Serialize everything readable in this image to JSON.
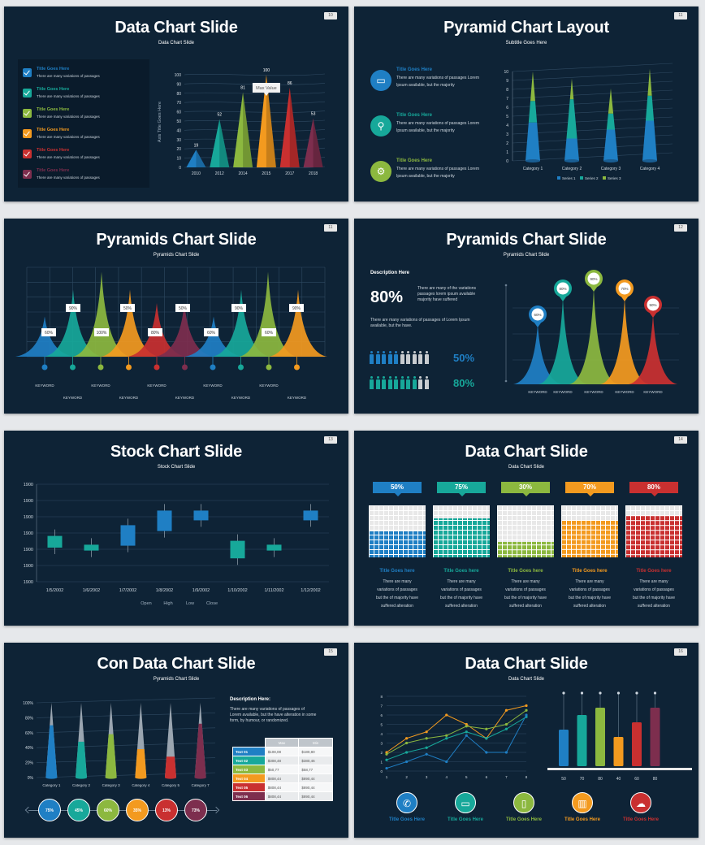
{
  "slides": {
    "s1": {
      "num": "10",
      "title": "Data Chart Slide",
      "subtitle": "Data Chart Slide",
      "legend": [
        {
          "title": "Title Goes Here",
          "text": "There are many variations of passages",
          "color": "#1f7fc4"
        },
        {
          "title": "Title Goes Here",
          "text": "There are many variations of passages",
          "color": "#17a89a"
        },
        {
          "title": "Title Goes Here",
          "text": "There are many variations of passages",
          "color": "#8cb83f"
        },
        {
          "title": "Title Goes Here",
          "text": "There are many variations of passages",
          "color": "#f39a1f"
        },
        {
          "title": "Title Goes Here",
          "text": "There are many variations of passages",
          "color": "#c93030"
        },
        {
          "title": "Title Goes Here",
          "text": "There are many variations of passages",
          "color": "#7d2e4e"
        }
      ],
      "tooltip": "Max Value",
      "ylabel": "Axis Title Goes Here"
    },
    "s2": {
      "num": "11",
      "title": "Pyramid Chart Layout",
      "subtitle": "Subtitle Goes Here",
      "items": [
        {
          "title": "Title Goes Here",
          "text1": "There are many variations of passages Lorem",
          "text2": "Ipsum available, but the majority",
          "color": "#1f7fc4",
          "icon": "monitor-icon"
        },
        {
          "title": "Title Goes Here",
          "text1": "There are many variations of passages Lorem",
          "text2": "Ipsum available, but the majority",
          "color": "#17a89a",
          "icon": "search-icon"
        },
        {
          "title": "Title Goes Here",
          "text1": "There are many variations of passages Lorem",
          "text2": "Ipsum available, but the majority",
          "color": "#8cb83f",
          "icon": "gears-icon"
        }
      ]
    },
    "s3": {
      "num": "11",
      "title": "Pyramids Chart Slide",
      "subtitle": "Pyramids Chart Slide"
    },
    "s4": {
      "num": "12",
      "title": "Pyramids Chart Slide",
      "subtitle": "Pyramids Chart Slide",
      "desc_title": "Description Here",
      "big_pct": "80%",
      "desc_text1": "There are many of the variations",
      "desc_text2": "passages lorem ipsum available",
      "desc_text3": "majority have suffered",
      "desc_text4": "There are many variations of passages of Lorem Ipsum",
      "desc_text5": "available, but the have.",
      "row1_pct": "50%",
      "row2_pct": "80%"
    },
    "s5": {
      "num": "13",
      "title": "Stock Chart Slide",
      "subtitle": "Stock Chart Slide"
    },
    "s6": {
      "num": "14",
      "title": "Data Chart Slide",
      "subtitle": "Data Chart Slide",
      "cols": [
        {
          "pct": "50%",
          "title": "Title Goes here",
          "color": "#1f7fc4",
          "fill": 0.5
        },
        {
          "pct": "75%",
          "title": "Title Goes here",
          "color": "#17a89a",
          "fill": 0.75
        },
        {
          "pct": "30%",
          "title": "Title Goes here",
          "color": "#8cb83f",
          "fill": 0.3
        },
        {
          "pct": "70%",
          "title": "Title Goes here",
          "color": "#f39a1f",
          "fill": 0.7
        },
        {
          "pct": "80%",
          "title": "Title Goes here",
          "color": "#c93030",
          "fill": 0.8
        }
      ],
      "col_text": [
        "There are many",
        "variations of passages",
        "but the of majority have",
        "suffered alteration"
      ]
    },
    "s7": {
      "num": "15",
      "title": "Con Data Chart Slide",
      "subtitle": "Pyramids Chart Slide",
      "desc_title": "Description Here:",
      "desc_lines": [
        "There are many variations of passages of",
        "Lorem available, but the have alteration in some",
        "form, by humour, or randomized."
      ],
      "table_head": [
        "Max",
        "Min"
      ],
      "table_rows": [
        {
          "label": "Text 01",
          "a": "$108,08",
          "b": "$180,80",
          "color": "#1f7fc4"
        },
        {
          "label": "Text 02",
          "a": "$308,48",
          "b": "$380,46",
          "color": "#17a89a"
        },
        {
          "label": "Text 03",
          "a": "$50,77",
          "b": "$58,77",
          "color": "#8cb83f"
        },
        {
          "label": "Text 04",
          "a": "$808,44",
          "b": "$890,44",
          "color": "#f39a1f"
        },
        {
          "label": "Text 05",
          "a": "$808,44",
          "b": "$890,44",
          "color": "#c93030"
        },
        {
          "label": "Text 06",
          "a": "$808,44",
          "b": "$890,44",
          "color": "#7d2e4e"
        }
      ],
      "circles": [
        {
          "label": "75%",
          "color": "#1f7fc4"
        },
        {
          "label": "45%",
          "color": "#17a89a"
        },
        {
          "label": "60%",
          "color": "#8cb83f"
        },
        {
          "label": "35%",
          "color": "#f39a1f"
        },
        {
          "label": "13%",
          "color": "#c93030"
        },
        {
          "label": "73%",
          "color": "#7d2e4e"
        }
      ]
    },
    "s8": {
      "num": "16",
      "title": "Data Chart Slide",
      "subtitle": "Data Chart Slide",
      "icons": [
        {
          "title": "Title Goes Here",
          "color": "#1f7fc4",
          "icon": "satellite-icon",
          "glyph": "✆"
        },
        {
          "title": "Title Goes Here",
          "color": "#17a89a",
          "icon": "monitor-icon",
          "glyph": "▭"
        },
        {
          "title": "Title Goes Here",
          "color": "#8cb83f",
          "icon": "phone-icon",
          "glyph": "▯"
        },
        {
          "title": "Title Goes Here",
          "color": "#f39a1f",
          "icon": "bar-chart-icon",
          "glyph": "▥"
        },
        {
          "title": "Title Goes Here",
          "color": "#c93030",
          "icon": "chat-icon",
          "glyph": "☁"
        }
      ]
    }
  },
  "chart_data": [
    {
      "type": "bar",
      "categories": [
        "2010",
        "2012",
        "2014",
        "2015",
        "2017",
        "2018"
      ],
      "values": [
        19,
        52,
        81,
        100,
        86,
        53
      ],
      "yticks": [
        "0",
        "10",
        "20",
        "30",
        "40",
        "50",
        "60",
        "70",
        "80",
        "90",
        "100"
      ],
      "ylim": [
        0,
        100
      ],
      "ylabel": "Axis Title Goes Here",
      "annotations": [
        "Max Value"
      ]
    },
    {
      "type": "bar",
      "categories": [
        "Category 1",
        "Category 2",
        "Category 3",
        "Category 4"
      ],
      "series": [
        {
          "name": "Series 1",
          "values": [
            4.3,
            2.5,
            3.5,
            4.5
          ]
        },
        {
          "name": "Series 2",
          "values": [
            2.4,
            4.4,
            1.8,
            2.8
          ]
        },
        {
          "name": "Series 3",
          "values": [
            3.3,
            2.3,
            2.8,
            3.0
          ]
        }
      ],
      "yticks": [
        "0",
        "1",
        "2",
        "3",
        "4",
        "5",
        "6",
        "7",
        "8",
        "9",
        "10"
      ],
      "ylim": [
        0,
        10
      ]
    },
    {
      "type": "area",
      "labels": [
        "60%",
        "90%",
        "100%",
        "50%",
        "80%",
        "50%",
        "60%",
        "90%",
        "60%",
        "90%",
        "100%",
        "90%"
      ],
      "keywords": [
        "KEYWORD",
        "KEYWORD",
        "KEYWORD",
        "KEYWORD",
        "KEYWORD",
        "KEYWORD",
        "KEYWORD",
        "KEYWORD",
        "KEYWORD",
        "KEYWORD"
      ]
    },
    {
      "type": "area",
      "labels": [
        "60%",
        "80%",
        "90%",
        "70%",
        "50%"
      ],
      "keywords": [
        "KEYWORD",
        "KEYWORD",
        "KEYWORD",
        "KEYWORD",
        "KEYWORD"
      ]
    },
    {
      "type": "bar",
      "categories": [
        "1/5/2002",
        "1/6/2002",
        "1/7/2002",
        "1/8/2002",
        "1/9/2002",
        "1/10/2002",
        "1/11/2002",
        "1/12/2002"
      ],
      "yticks": [
        "1900",
        "1900",
        "1900",
        "1900",
        "1900",
        "1900",
        "1900"
      ],
      "legend": [
        "Open",
        "High",
        "Low",
        "Close"
      ],
      "candles": [
        [
          0.47,
          0.35
        ],
        [
          0.38,
          0.32
        ],
        [
          0.58,
          0.37
        ],
        [
          0.73,
          0.52
        ],
        [
          0.73,
          0.63
        ],
        [
          0.42,
          0.24
        ],
        [
          0.38,
          0.32
        ],
        [
          0.73,
          0.63
        ]
      ]
    },
    {
      "type": "bar",
      "categories": [
        "Category 1",
        "Category 2",
        "Category 3",
        "Category 4",
        "Category 5",
        "Category 7"
      ],
      "values": [
        70,
        48,
        58,
        38,
        28,
        72
      ],
      "yticks": [
        "0%",
        "20%",
        "40%",
        "60%",
        "80%",
        "100%"
      ],
      "ylim": [
        0,
        100
      ]
    },
    {
      "type": "line",
      "x": [
        "1",
        "2",
        "3",
        "4",
        "5",
        "6",
        "7",
        "8"
      ],
      "yticks": [
        "0",
        "1",
        "2",
        "3",
        "4",
        "5",
        "6",
        "7",
        "8"
      ],
      "series": [
        {
          "values": [
            2,
            3.5,
            4.2,
            6.0,
            5.0,
            3.5,
            6.5,
            7.0
          ]
        },
        {
          "values": [
            1.8,
            3.0,
            3.5,
            3.8,
            4.8,
            4.5,
            5.0,
            6.5
          ]
        },
        {
          "values": [
            1.2,
            2.0,
            2.5,
            3.5,
            4.2,
            3.5,
            4.5,
            5.8
          ]
        },
        {
          "values": [
            0.3,
            1.0,
            1.8,
            1.0,
            3.8,
            2.0,
            2.0,
            6.0
          ]
        }
      ]
    },
    {
      "type": "bar",
      "categories": [
        "50",
        "70",
        "80",
        "40",
        "60",
        "80"
      ],
      "values": [
        50,
        70,
        80,
        40,
        60,
        80
      ]
    }
  ]
}
